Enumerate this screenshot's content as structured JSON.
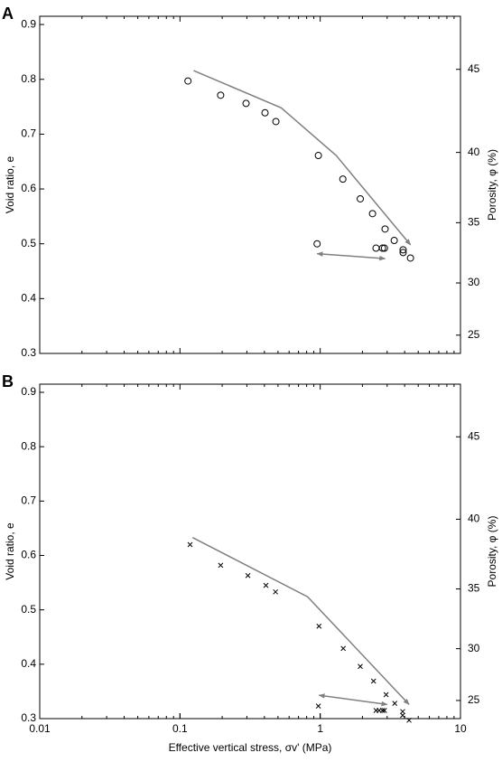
{
  "chart_data": [
    {
      "type": "scatter",
      "label": "A",
      "ylabel": "Void ratio, e",
      "y2label": "Porosity, φ (%)",
      "xscale": "log",
      "xlim": [
        0.01,
        10
      ],
      "ylim": [
        0.3,
        0.915
      ],
      "yticks": [
        0.3,
        0.4,
        0.5,
        0.6,
        0.7,
        0.8,
        0.9
      ],
      "y2ticks": [
        25,
        30,
        35,
        40,
        45
      ],
      "marker": "circle",
      "color": "#000000",
      "x": [
        0.114,
        0.195,
        0.296,
        0.404,
        0.483,
        0.97,
        1.45,
        1.93,
        2.36,
        2.9,
        3.37,
        3.9,
        3.9,
        4.4,
        2.5,
        2.78,
        2.87,
        0.95
      ],
      "values": [
        0.797,
        0.771,
        0.756,
        0.739,
        0.723,
        0.661,
        0.618,
        0.582,
        0.555,
        0.527,
        0.506,
        0.489,
        0.484,
        0.474,
        0.492,
        0.492,
        0.492,
        0.5
      ],
      "lines": [
        {
          "color": "#808080",
          "arrows": "end",
          "x": [
            0.125,
            0.527,
            1.3,
            4.4
          ],
          "values": [
            0.816,
            0.748,
            0.661,
            0.498
          ]
        },
        {
          "color": "#808080",
          "arrows": "both",
          "x": [
            0.95,
            2.9
          ],
          "values": [
            0.482,
            0.473
          ]
        }
      ]
    },
    {
      "type": "scatter",
      "label": "B",
      "ylabel": "Void ratio, e",
      "y2label": "Porosity, φ (%)",
      "xlabel": "Effective vertical stress, σv' (MPa)",
      "xscale": "log",
      "xlim": [
        0.01,
        10
      ],
      "ylim": [
        0.3,
        0.915
      ],
      "xticks": [
        0.01,
        0.1,
        1,
        10
      ],
      "yticks": [
        0.3,
        0.4,
        0.5,
        0.6,
        0.7,
        0.8,
        0.9
      ],
      "y2ticks": [
        25,
        30,
        35,
        40,
        45
      ],
      "marker": "x",
      "color": "#000000",
      "x": [
        0.118,
        0.195,
        0.305,
        0.41,
        0.48,
        0.98,
        1.46,
        1.93,
        2.4,
        2.95,
        3.4,
        3.87,
        3.87,
        4.3,
        2.5,
        2.63,
        2.78,
        2.87,
        0.97
      ],
      "values": [
        0.62,
        0.582,
        0.563,
        0.545,
        0.533,
        0.47,
        0.429,
        0.396,
        0.369,
        0.344,
        0.328,
        0.313,
        0.306,
        0.297,
        0.315,
        0.315,
        0.315,
        0.315,
        0.323
      ],
      "lines": [
        {
          "color": "#808080",
          "arrows": "end",
          "x": [
            0.123,
            0.813,
            4.3
          ],
          "values": [
            0.633,
            0.524,
            0.326
          ]
        },
        {
          "color": "#808080",
          "arrows": "both",
          "x": [
            0.98,
            3.0
          ],
          "values": [
            0.343,
            0.326
          ]
        }
      ]
    }
  ]
}
